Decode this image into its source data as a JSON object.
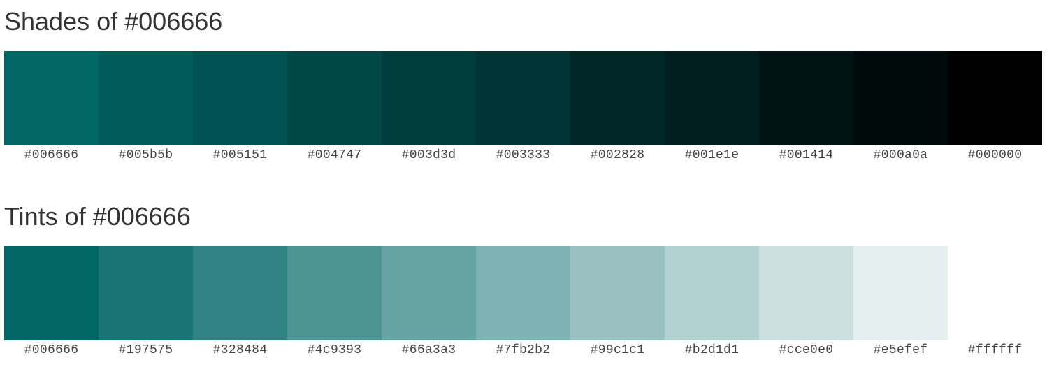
{
  "shades": {
    "title": "Shades of #006666",
    "swatches": [
      {
        "label": "#006666",
        "color": "#006666"
      },
      {
        "label": "#005b5b",
        "color": "#005b5b"
      },
      {
        "label": "#005151",
        "color": "#005151"
      },
      {
        "label": "#004747",
        "color": "#004747"
      },
      {
        "label": "#003d3d",
        "color": "#003d3d"
      },
      {
        "label": "#003333",
        "color": "#003333"
      },
      {
        "label": "#002828",
        "color": "#002828"
      },
      {
        "label": "#001e1e",
        "color": "#001e1e"
      },
      {
        "label": "#001414",
        "color": "#001414"
      },
      {
        "label": "#000a0a",
        "color": "#000a0a"
      },
      {
        "label": "#000000",
        "color": "#000000"
      }
    ]
  },
  "tints": {
    "title": "Tints of #006666",
    "swatches": [
      {
        "label": "#006666",
        "color": "#006666"
      },
      {
        "label": "#197575",
        "color": "#197575"
      },
      {
        "label": "#328484",
        "color": "#328484"
      },
      {
        "label": "#4c9393",
        "color": "#4c9393"
      },
      {
        "label": "#66a3a3",
        "color": "#66a3a3"
      },
      {
        "label": "#7fb2b2",
        "color": "#7fb2b2"
      },
      {
        "label": "#99c1c1",
        "color": "#99c1c1"
      },
      {
        "label": "#b2d1d1",
        "color": "#b2d1d1"
      },
      {
        "label": "#cce0e0",
        "color": "#cce0e0"
      },
      {
        "label": "#e5efef",
        "color": "#e5efef"
      },
      {
        "label": "#ffffff",
        "color": "#ffffff"
      }
    ]
  }
}
